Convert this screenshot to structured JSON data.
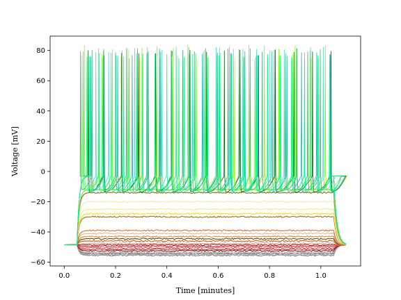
{
  "chart_data": {
    "type": "line",
    "title": "",
    "xlabel": "Time [minutes]",
    "ylabel": "Voltage [mV]",
    "xlim": [
      -0.055,
      1.155
    ],
    "ylim": [
      -62.5,
      89.5
    ],
    "xticks": [
      0.0,
      0.2,
      0.4,
      0.6,
      0.8,
      1.0
    ],
    "xtick_labels": [
      "0.0",
      "0.2",
      "0.4",
      "0.6",
      "0.8",
      "1.0"
    ],
    "yticks": [
      -60,
      -40,
      -20,
      0,
      20,
      40,
      60,
      80
    ],
    "ytick_labels": [
      "−60",
      "−40",
      "−20",
      "0",
      "20",
      "40",
      "60",
      "80"
    ],
    "grid": false,
    "legend": "none",
    "stimulus": {
      "onset": 0.05,
      "offset": 1.05,
      "baseline_mV": -48.5,
      "end_time": 1.1
    },
    "series": [
      {
        "color": "#808080",
        "plateau": -55.5,
        "spiking": false
      },
      {
        "color": "#999999",
        "plateau": -55.0,
        "spiking": false
      },
      {
        "color": "#a9a9a9",
        "plateau": -54.5,
        "spiking": false
      },
      {
        "color": "#6e6e6e",
        "plateau": -54.0,
        "spiking": false
      },
      {
        "color": "#b8b8b8",
        "plateau": -53.5,
        "spiking": false
      },
      {
        "color": "#8b0000",
        "plateau": -52.5,
        "spiking": false
      },
      {
        "color": "#b22222",
        "plateau": -51.5,
        "spiking": false
      },
      {
        "color": "#cd5c5c",
        "plateau": -50.5,
        "spiking": false
      },
      {
        "color": "#dc143c",
        "plateau": -49.5,
        "spiking": false
      },
      {
        "color": "#8b1a1a",
        "plateau": -48.5,
        "spiking": false
      },
      {
        "color": "#e9967a",
        "plateau": -47.5,
        "spiking": false
      },
      {
        "color": "#b05a00",
        "plateau": -46.0,
        "spiking": false
      },
      {
        "color": "#5c3a00",
        "plateau": -44.5,
        "spiking": false
      },
      {
        "color": "#cd853f",
        "plateau": -43.0,
        "spiking": false
      },
      {
        "color": "#deb887",
        "plateau": -41.0,
        "spiking": false
      },
      {
        "color": "#d2691e",
        "plateau": -39.0,
        "spiking": false
      },
      {
        "color": "#8b6914",
        "plateau": -30.0,
        "spiking": false
      },
      {
        "color": "#ffd700",
        "plateau": -28.0,
        "spiking": false
      },
      {
        "color": "#f0e68c",
        "plateau": -25.0,
        "spiking": false
      },
      {
        "color": "#eee8aa",
        "plateau": -20.0,
        "spiking": false
      },
      {
        "color": "#6b6b00",
        "plateau": -14.0,
        "spiking": false
      },
      {
        "color": "#9acd32",
        "plateau": -12.0,
        "spiking": false
      },
      {
        "color": "#adff2f",
        "plateau": -3.0,
        "spiking": true,
        "isi": 0.072,
        "phase": 0.005
      },
      {
        "color": "#006400",
        "plateau": -3.0,
        "spiking": true,
        "isi": 0.066,
        "phase": 0.03
      },
      {
        "color": "#7cfc00",
        "plateau": -3.0,
        "spiking": true,
        "isi": 0.06,
        "phase": 0.015
      },
      {
        "color": "#20b2aa",
        "plateau": -3.0,
        "spiking": true,
        "isi": 0.056,
        "phase": 0.04
      },
      {
        "color": "#40e0d0",
        "plateau": -3.0,
        "spiking": true,
        "isi": 0.052,
        "phase": 0.01
      },
      {
        "color": "#00ff7f",
        "plateau": -3.0,
        "spiking": true,
        "isi": 0.048,
        "phase": 0.025
      },
      {
        "color": "#3cb371",
        "plateau": -3.0,
        "spiking": true,
        "isi": 0.045,
        "phase": 0.0
      },
      {
        "color": "#00fa9a",
        "plateau": -3.0,
        "spiking": true,
        "isi": 0.05,
        "phase": 0.035
      }
    ]
  }
}
